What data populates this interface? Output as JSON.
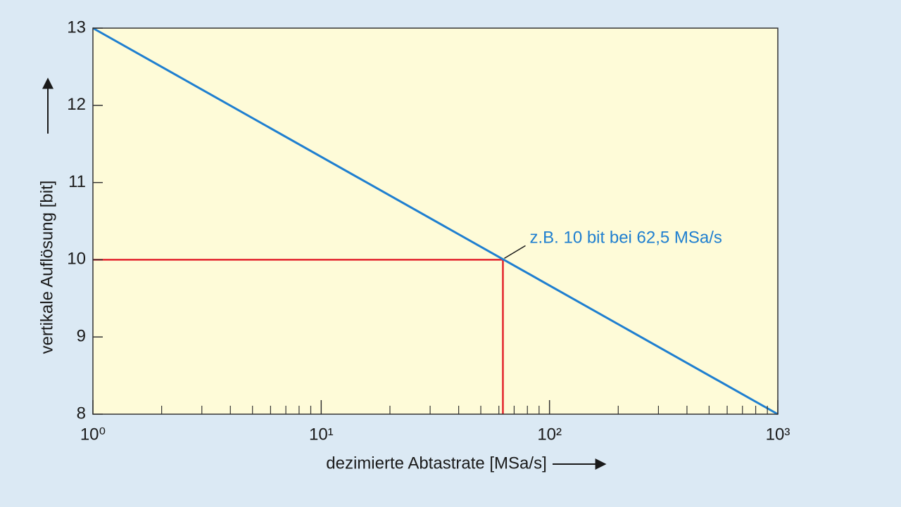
{
  "chart_data": {
    "type": "line",
    "x_label": "dezimierte Abtastrate [MSa/s]",
    "y_label": "vertikale Auflösung [bit]",
    "x": [
      1,
      1000
    ],
    "series": [
      {
        "color": "#1f7fd0",
        "values": [
          13,
          8
        ]
      }
    ],
    "xlim": [
      1,
      1000
    ],
    "x_log": true,
    "xticks": [
      {
        "value": 1,
        "label": "10⁰"
      },
      {
        "value": 10,
        "label": "10¹"
      },
      {
        "value": 100,
        "label": "10²"
      },
      {
        "value": 1000,
        "label": "10³"
      }
    ],
    "xminor_ticks": [
      2,
      3,
      4,
      5,
      6,
      7,
      8,
      9,
      20,
      30,
      40,
      50,
      60,
      70,
      80,
      90,
      200,
      300,
      400,
      500,
      600,
      700,
      800,
      900
    ],
    "ylim": [
      8,
      13
    ],
    "yticks": [
      8,
      9,
      10,
      11,
      12,
      13
    ],
    "highlight": {
      "x": 62.5,
      "y": 10,
      "color": "#e3232c"
    },
    "annotation": "z.B. 10 bit bei 62,5 MSa/s"
  }
}
